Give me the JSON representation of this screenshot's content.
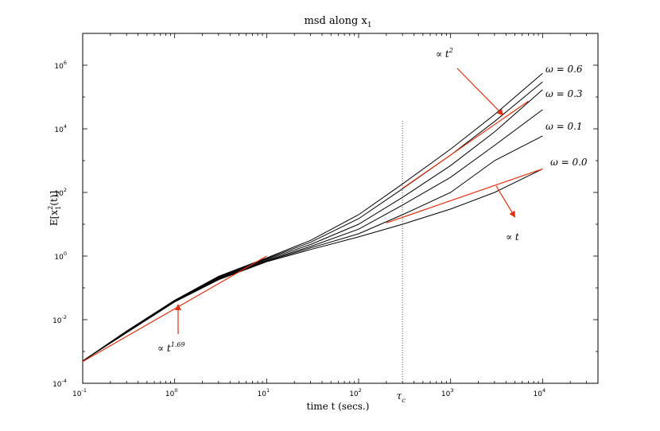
{
  "chart_data": {
    "type": "line",
    "title": "msd along x",
    "title_sub": "1",
    "xlabel": "time t (secs.)",
    "ylabel": "E[x",
    "ylabel_sub": "1",
    "ylabel_sup": "2",
    "ylabel_tail": "(t)]",
    "x_scale": "log",
    "y_scale": "log",
    "xlim": [
      0.1,
      40000
    ],
    "ylim": [
      0.0001,
      10000000
    ],
    "x_ticks": [
      {
        "base": "10",
        "exp": "-1",
        "value": 0.1
      },
      {
        "base": "10",
        "exp": "0",
        "value": 1
      },
      {
        "base": "10",
        "exp": "1",
        "value": 10
      },
      {
        "base": "10",
        "exp": "2",
        "value": 100
      },
      {
        "base": "10",
        "exp": "3",
        "value": 1000
      },
      {
        "base": "10",
        "exp": "4",
        "value": 10000
      }
    ],
    "y_ticks": [
      {
        "base": "10",
        "exp": "-4",
        "value": 0.0001
      },
      {
        "base": "10",
        "exp": "-2",
        "value": 0.01
      },
      {
        "base": "10",
        "exp": "0",
        "value": 1
      },
      {
        "base": "10",
        "exp": "2",
        "value": 100
      },
      {
        "base": "10",
        "exp": "4",
        "value": 10000
      },
      {
        "base": "10",
        "exp": "6",
        "value": 1000000
      }
    ],
    "grid": false,
    "series": [
      {
        "name": "ω = 0.6",
        "color": "#000000",
        "x": [
          0.1,
          0.3,
          1,
          3,
          10,
          30,
          100,
          300,
          1000,
          3000,
          10000
        ],
        "y": [
          0.0005,
          0.0044,
          0.041,
          0.23,
          0.87,
          3.1,
          20,
          185,
          2300,
          28000,
          560000
        ]
      },
      {
        "name": "",
        "color": "#000000",
        "x": [
          0.1,
          0.3,
          1,
          3,
          10,
          30,
          100,
          300,
          1000,
          3000,
          10000
        ],
        "y": [
          0.0005,
          0.0043,
          0.04,
          0.22,
          0.82,
          2.7,
          15,
          130,
          1500,
          17000,
          300000
        ]
      },
      {
        "name": "ω = 0.3",
        "color": "#000000",
        "x": [
          0.1,
          0.3,
          1,
          3,
          10,
          30,
          100,
          300,
          1000,
          3000,
          10000
        ],
        "y": [
          0.0005,
          0.0042,
          0.039,
          0.21,
          0.78,
          2.3,
          10,
          70,
          700,
          8000,
          170000
        ]
      },
      {
        "name": "",
        "color": "#000000",
        "x": [
          0.1,
          0.3,
          1,
          3,
          10,
          30,
          100,
          300,
          1000,
          3000,
          10000
        ],
        "y": [
          0.0005,
          0.0041,
          0.038,
          0.2,
          0.73,
          2.0,
          7,
          40,
          300,
          3000,
          40000
        ]
      },
      {
        "name": "ω = 0.1",
        "color": "#000000",
        "x": [
          0.1,
          0.3,
          1,
          3,
          10,
          30,
          100,
          300,
          1000,
          3000,
          10000
        ],
        "y": [
          0.0005,
          0.004,
          0.037,
          0.19,
          0.69,
          1.8,
          5,
          20,
          100,
          1000,
          6000
        ]
      },
      {
        "name": "ω = 0.0",
        "color": "#000000",
        "x": [
          0.1,
          0.3,
          1,
          3,
          10,
          30,
          100,
          300,
          1000,
          3000,
          10000
        ],
        "y": [
          0.0005,
          0.0039,
          0.036,
          0.18,
          0.66,
          1.6,
          4,
          10,
          30,
          100,
          550
        ]
      }
    ],
    "fit_lines": [
      {
        "label": "∝ t",
        "exp_label": "1.69",
        "color": "#e03010",
        "x": [
          0.1,
          10
        ],
        "y": [
          0.00048,
          1.0
        ]
      },
      {
        "label": "∝ t",
        "exp_label": "2",
        "color": "#e03010",
        "x": [
          300,
          7000
        ],
        "y": [
          135,
          74000
        ]
      },
      {
        "label": "∝ t",
        "exp_label": "",
        "color": "#e03010",
        "x": [
          200,
          10000
        ],
        "y": [
          11,
          550
        ]
      }
    ],
    "vline": {
      "x": 300,
      "label": "τ",
      "label_sub": "c",
      "style": "dotted"
    },
    "annotations": [
      {
        "text": "∝ t",
        "sup": "1.69"
      },
      {
        "text": "∝ t",
        "sup": "2"
      },
      {
        "text": "∝ t",
        "sup": ""
      }
    ],
    "legend_labels": [
      "ω = 0.6",
      "ω = 0.3",
      "ω = 0.1",
      "ω = 0.0"
    ]
  }
}
